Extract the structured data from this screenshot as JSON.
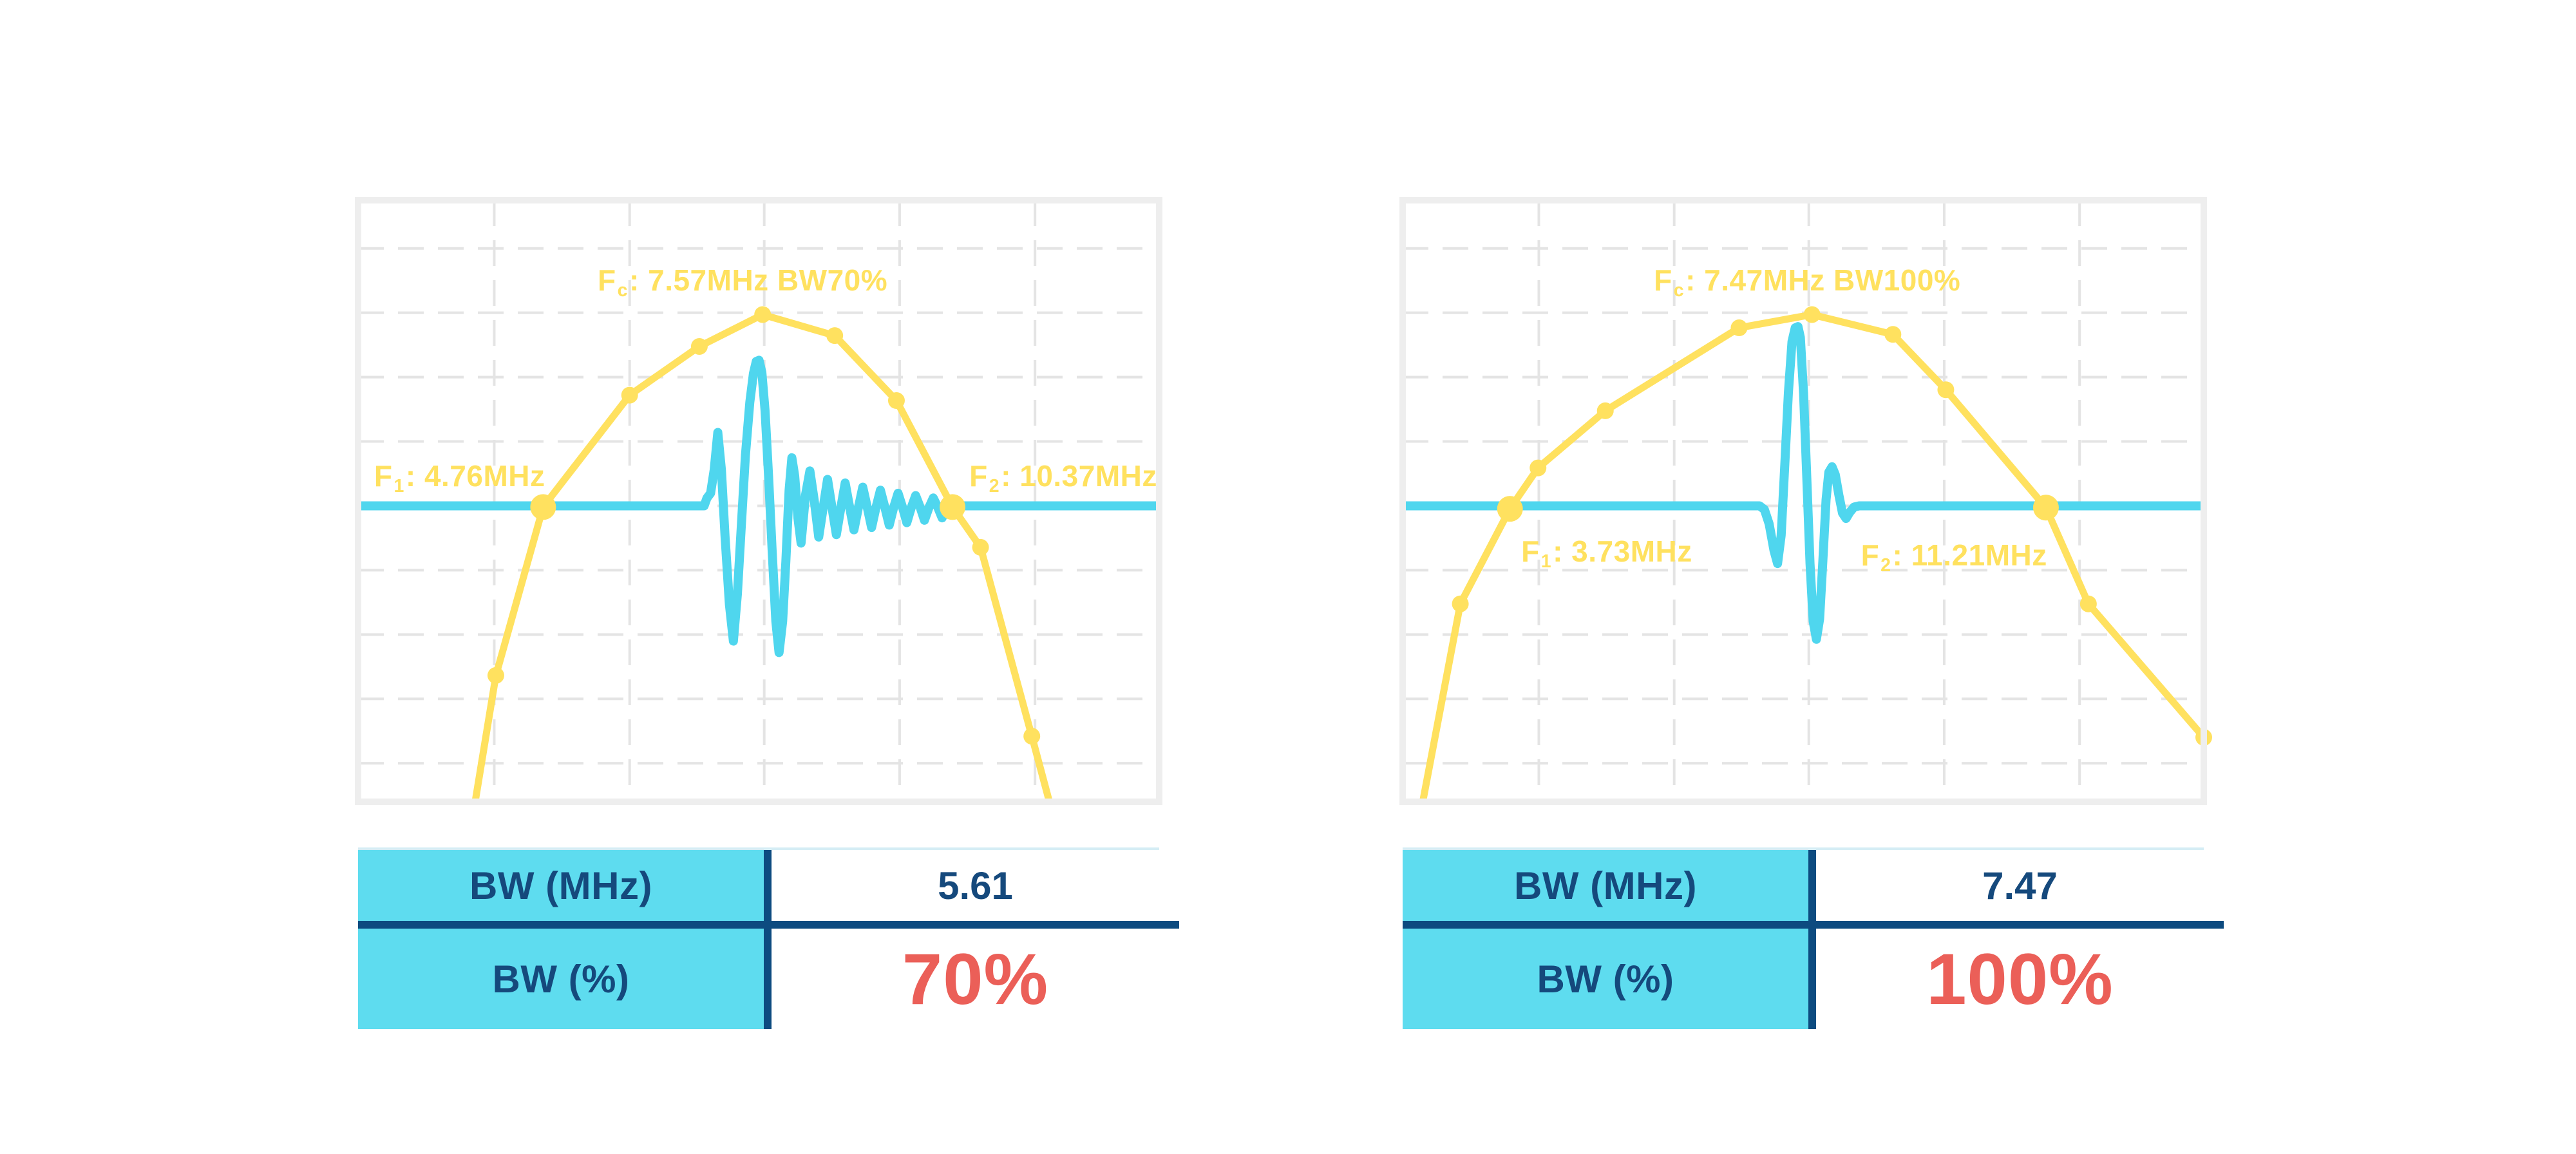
{
  "colors": {
    "yellow": "#FFE15F",
    "cyan": "#4FD6EE",
    "table_cyan": "#5EDCEF",
    "navy": "#15497C",
    "line_navy": "#0D4B80",
    "red": "#EB5F58",
    "chart_border": "#EEEEEE",
    "grid": "#E4E4E4",
    "table_topline": "#D5EDF5",
    "background": "#FFFFFF"
  },
  "grid": {
    "v": [
      0.17,
      0.339,
      0.507,
      0.676,
      0.845
    ],
    "h": [
      0.08,
      0.187,
      0.294,
      0.401,
      0.508,
      0.615,
      0.722,
      0.829,
      0.936
    ],
    "dash": "40 22"
  },
  "charts": [
    {
      "name": "bw-70-percent",
      "annotations": {
        "fc": {
          "prefix": "F",
          "sub": "c",
          "rest": ": 7.57MHz BW70%"
        },
        "f1": {
          "prefix": "F",
          "sub": "1",
          "rest": ": 4.76MHz"
        },
        "f2": {
          "prefix": "F",
          "sub": "2",
          "rest": ": 10.37MHz"
        }
      },
      "values": {
        "fc_mhz": 7.57,
        "f1_mhz": 4.76,
        "f2_mhz": 10.37,
        "bw_mhz": 5.61,
        "bw_pct": 70
      },
      "table": {
        "rows": [
          {
            "label": "BW (MHz)",
            "value": "5.61"
          },
          {
            "label": "BW (%)",
            "value": "70%"
          }
        ]
      },
      "render": {
        "baseline_y": 0.508,
        "spectrum": [
          [
            0.14,
            1.05
          ],
          [
            0.172,
            0.79
          ],
          [
            0.231,
            0.51
          ],
          [
            0.339,
            0.324
          ],
          [
            0.426,
            0.243
          ],
          [
            0.505,
            0.19
          ],
          [
            0.595,
            0.225
          ],
          [
            0.672,
            0.333
          ],
          [
            0.742,
            0.51
          ],
          [
            0.777,
            0.577
          ],
          [
            0.841,
            0.891
          ],
          [
            0.873,
            1.05
          ]
        ],
        "markers_small": [
          [
            0.172,
            0.79
          ],
          [
            0.339,
            0.324
          ],
          [
            0.426,
            0.243
          ],
          [
            0.505,
            0.19
          ],
          [
            0.595,
            0.225
          ],
          [
            0.672,
            0.333
          ],
          [
            0.777,
            0.577
          ],
          [
            0.841,
            0.891
          ]
        ],
        "markers_big": [
          [
            0.231,
            0.51
          ],
          [
            0.742,
            0.51
          ]
        ],
        "edge_marker": null,
        "pulse": [
          [
            0,
            0.508
          ],
          [
            0.432,
            0.508
          ],
          [
            0.4355,
            0.495
          ],
          [
            0.44,
            0.487
          ],
          [
            0.4445,
            0.448
          ],
          [
            0.449,
            0.386
          ],
          [
            0.4535,
            0.448
          ],
          [
            0.458,
            0.558
          ],
          [
            0.4635,
            0.672
          ],
          [
            0.4685,
            0.733
          ],
          [
            0.4735,
            0.655
          ],
          [
            0.4785,
            0.538
          ],
          [
            0.4835,
            0.424
          ],
          [
            0.489,
            0.336
          ],
          [
            0.4935,
            0.288
          ],
          [
            0.497,
            0.268
          ],
          [
            0.5005,
            0.266
          ],
          [
            0.504,
            0.286
          ],
          [
            0.508,
            0.35
          ],
          [
            0.5125,
            0.46
          ],
          [
            0.517,
            0.585
          ],
          [
            0.5215,
            0.7
          ],
          [
            0.5255,
            0.752
          ],
          [
            0.53,
            0.7
          ],
          [
            0.534,
            0.6
          ],
          [
            0.538,
            0.482
          ],
          [
            0.5415,
            0.428
          ],
          [
            0.545,
            0.458
          ],
          [
            0.549,
            0.528
          ],
          [
            0.553,
            0.57
          ],
          [
            0.5585,
            0.49
          ],
          [
            0.564,
            0.45
          ],
          [
            0.5695,
            0.5
          ],
          [
            0.575,
            0.56
          ],
          [
            0.5805,
            0.512
          ],
          [
            0.586,
            0.464
          ],
          [
            0.5915,
            0.51
          ],
          [
            0.597,
            0.556
          ],
          [
            0.6025,
            0.512
          ],
          [
            0.608,
            0.47
          ],
          [
            0.6135,
            0.51
          ],
          [
            0.619,
            0.548
          ],
          [
            0.6245,
            0.511
          ],
          [
            0.63,
            0.477
          ],
          [
            0.6355,
            0.51
          ],
          [
            0.641,
            0.544
          ],
          [
            0.6465,
            0.511
          ],
          [
            0.652,
            0.482
          ],
          [
            0.6575,
            0.51
          ],
          [
            0.663,
            0.54
          ],
          [
            0.6685,
            0.511
          ],
          [
            0.674,
            0.487
          ],
          [
            0.6795,
            0.51
          ],
          [
            0.685,
            0.536
          ],
          [
            0.6905,
            0.511
          ],
          [
            0.696,
            0.491
          ],
          [
            0.7015,
            0.51
          ],
          [
            0.707,
            0.532
          ],
          [
            0.7125,
            0.511
          ],
          [
            0.718,
            0.495
          ],
          [
            0.7235,
            0.51
          ],
          [
            0.729,
            0.528
          ],
          [
            0.7345,
            0.511
          ],
          [
            0.74,
            0.502
          ],
          [
            0.744,
            0.508
          ],
          [
            1,
            0.508
          ]
        ]
      }
    },
    {
      "name": "bw-100-percent",
      "annotations": {
        "fc": {
          "prefix": "F",
          "sub": "c",
          "rest": ": 7.47MHz BW100%"
        },
        "f1": {
          "prefix": "F",
          "sub": "1",
          "rest": ": 3.73MHz"
        },
        "f2": {
          "prefix": "F",
          "sub": "2",
          "rest": ": 11.21MHz"
        }
      },
      "values": {
        "fc_mhz": 7.47,
        "f1_mhz": 3.73,
        "f2_mhz": 11.21,
        "bw_mhz": 7.47,
        "bw_pct": 100
      },
      "table": {
        "rows": [
          {
            "label": "BW (MHz)",
            "value": "7.47"
          },
          {
            "label": "BW (%)",
            "value": "100%"
          }
        ]
      },
      "render": {
        "baseline_y": 0.508,
        "spectrum": [
          [
            0.018,
            1.05
          ],
          [
            0.072,
            0.671
          ],
          [
            0.134,
            0.513
          ],
          [
            0.169,
            0.445
          ],
          [
            0.253,
            0.35
          ],
          [
            0.42,
            0.212
          ],
          [
            0.511,
            0.19
          ],
          [
            0.612,
            0.223
          ],
          [
            0.678,
            0.315
          ],
          [
            0.803,
            0.511
          ],
          [
            0.856,
            0.671
          ],
          [
            1.0,
            0.893
          ]
        ],
        "markers_small": [
          [
            0.072,
            0.671
          ],
          [
            0.169,
            0.445
          ],
          [
            0.253,
            0.35
          ],
          [
            0.42,
            0.212
          ],
          [
            0.511,
            0.19
          ],
          [
            0.612,
            0.223
          ],
          [
            0.678,
            0.315
          ],
          [
            0.856,
            0.671
          ]
        ],
        "markers_big": [
          [
            0.134,
            0.513
          ],
          [
            0.803,
            0.511
          ]
        ],
        "edge_marker": [
          1.0,
          0.893
        ],
        "pulse": [
          [
            0,
            0.508
          ],
          [
            0.4455,
            0.508
          ],
          [
            0.4515,
            0.514
          ],
          [
            0.4575,
            0.538
          ],
          [
            0.4635,
            0.582
          ],
          [
            0.468,
            0.604
          ],
          [
            0.4725,
            0.557
          ],
          [
            0.477,
            0.44
          ],
          [
            0.4815,
            0.32
          ],
          [
            0.486,
            0.235
          ],
          [
            0.49,
            0.212
          ],
          [
            0.4935,
            0.21
          ],
          [
            0.4965,
            0.228
          ],
          [
            0.5005,
            0.322
          ],
          [
            0.5045,
            0.462
          ],
          [
            0.5085,
            0.604
          ],
          [
            0.5125,
            0.7
          ],
          [
            0.5165,
            0.73
          ],
          [
            0.5205,
            0.696
          ],
          [
            0.5245,
            0.6
          ],
          [
            0.5285,
            0.498
          ],
          [
            0.532,
            0.452
          ],
          [
            0.536,
            0.443
          ],
          [
            0.54,
            0.456
          ],
          [
            0.5445,
            0.49
          ],
          [
            0.549,
            0.52
          ],
          [
            0.5535,
            0.529
          ],
          [
            0.558,
            0.519
          ],
          [
            0.5635,
            0.51
          ],
          [
            0.57,
            0.508
          ],
          [
            1,
            0.508
          ]
        ]
      }
    }
  ],
  "chart_data": [
    {
      "type": "line",
      "title": "Fc: 7.57MHz BW70%",
      "annotations": [
        "Fc: 7.57MHz BW70%",
        "F1: 4.76MHz",
        "F2: 10.37MHz"
      ],
      "f1_mhz": 4.76,
      "fc_mhz": 7.57,
      "f2_mhz": 10.37,
      "bw_mhz": 5.61,
      "bw_pct": 70,
      "legend": false,
      "grid": true,
      "note": "level = vertical fraction from plot top (0=top,1=bottom); cutoff baseline at level 0.508",
      "series": [
        {
          "name": "frequency-spectrum",
          "x_mhz": [
            4.15,
            4.76,
            5.87,
            6.76,
            7.57,
            8.63,
            9.54,
            10.37,
            10.78,
            11.54
          ],
          "level": [
            0.79,
            0.51,
            0.324,
            0.243,
            0.19,
            0.225,
            0.333,
            0.51,
            0.577,
            0.891
          ]
        },
        {
          "name": "cutoff-line-and-pulse-echo",
          "x_mhz": "overlaid time-domain pulse (stylized)",
          "level": "see charts.0.render.pulse"
        }
      ],
      "table": {
        "BW (MHz)": "5.61",
        "BW (%)": "70%"
      }
    },
    {
      "type": "line",
      "title": "Fc: 7.47MHz BW100%",
      "annotations": [
        "Fc: 7.47MHz BW100%",
        "F1: 3.73MHz",
        "F2: 11.21MHz"
      ],
      "f1_mhz": 3.73,
      "fc_mhz": 7.47,
      "f2_mhz": 11.21,
      "bw_mhz": 7.47,
      "bw_pct": 100,
      "legend": false,
      "grid": true,
      "note": "level = vertical fraction from plot top (0=top,1=bottom); cutoff baseline at level 0.508",
      "series": [
        {
          "name": "frequency-spectrum",
          "x_mhz": [
            3.11,
            3.73,
            4.08,
            4.91,
            6.57,
            7.47,
            8.76,
            9.61,
            11.21,
            11.89,
            13.73
          ],
          "level": [
            0.671,
            0.513,
            0.445,
            0.35,
            0.212,
            0.19,
            0.223,
            0.315,
            0.511,
            0.671,
            0.893
          ]
        },
        {
          "name": "cutoff-line-and-pulse-echo",
          "x_mhz": "overlaid time-domain pulse (stylized)",
          "level": "see charts.1.render.pulse"
        }
      ],
      "table": {
        "BW (MHz)": "7.47",
        "BW (%)": "100%"
      }
    }
  ]
}
